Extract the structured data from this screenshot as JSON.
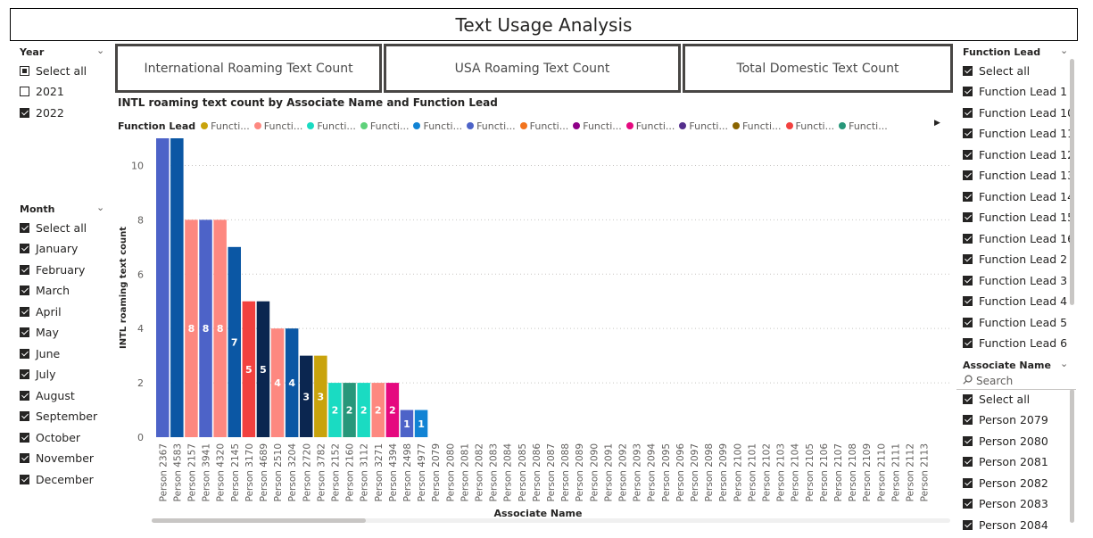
{
  "page_title": "Text Usage Analysis",
  "year_slicer": {
    "header": "Year",
    "items": [
      {
        "label": "Select all",
        "state": "partial"
      },
      {
        "label": "2021",
        "state": "unchecked"
      },
      {
        "label": "2022",
        "state": "checked"
      }
    ]
  },
  "month_slicer": {
    "header": "Month",
    "items": [
      "Select all",
      "January",
      "February",
      "March",
      "April",
      "May",
      "June",
      "July",
      "August",
      "September",
      "October",
      "November",
      "December"
    ]
  },
  "cards": [
    {
      "label": "International Roaming Text Count"
    },
    {
      "label": "USA Roaming Text Count"
    },
    {
      "label": "Total Domestic Text Count"
    }
  ],
  "function_lead_slicer": {
    "header": "Function Lead",
    "items": [
      "Select all",
      "Function Lead 1",
      "Function Lead 10",
      "Function Lead 11",
      "Function Lead 12",
      "Function Lead 13",
      "Function Lead 14",
      "Function Lead 15",
      "Function Lead 16",
      "Function Lead 2",
      "Function Lead 3",
      "Function Lead 4",
      "Function Lead 5",
      "Function Lead 6"
    ]
  },
  "associate_slicer": {
    "header": "Associate Name",
    "search_placeholder": "Search",
    "items": [
      "Select all",
      "Person 2079",
      "Person 2080",
      "Person 2081",
      "Person 2082",
      "Person 2083",
      "Person 2084"
    ]
  },
  "chart": {
    "title": "INTL roaming text count by Associate Name and Function Lead",
    "legend_title": "Function Lead",
    "legend_items": [
      {
        "label": "Functi...",
        "color": "#C9A30C"
      },
      {
        "label": "Functi...",
        "color": "#FD8880"
      },
      {
        "label": "Functi...",
        "color": "#1ADBC2"
      },
      {
        "label": "Functi...",
        "color": "#5ED17A"
      },
      {
        "label": "Functi...",
        "color": "#1183D4"
      },
      {
        "label": "Functi...",
        "color": "#4D63C8"
      },
      {
        "label": "Functi...",
        "color": "#F2731D"
      },
      {
        "label": "Functi...",
        "color": "#8E0088"
      },
      {
        "label": "Functi...",
        "color": "#E5097F"
      },
      {
        "label": "Functi...",
        "color": "#542E8C"
      },
      {
        "label": "Functi...",
        "color": "#8A6400"
      },
      {
        "label": "Functi...",
        "color": "#F2413F"
      },
      {
        "label": "Functi...",
        "color": "#27977A"
      }
    ]
  },
  "chart_data": {
    "type": "bar",
    "title": "INTL roaming text count by Associate Name and Function Lead",
    "xlabel": "Associate Name",
    "ylabel": "INTL roaming text count",
    "ylim": [
      0,
      11
    ],
    "yticks": [
      0,
      2,
      4,
      6,
      8,
      10
    ],
    "grid": true,
    "legend_position": "top-left",
    "categories": [
      "Person 2367",
      "Person 4583",
      "Person 2157",
      "Person 3941",
      "Person 4320",
      "Person 2145",
      "Person 3170",
      "Person 4689",
      "Person 2510",
      "Person 3204",
      "Person 2720",
      "Person 3782",
      "Person 2152",
      "Person 2160",
      "Person 3112",
      "Person 3271",
      "Person 4394",
      "Person 2498",
      "Person 4977",
      "Person 2079",
      "Person 2080",
      "Person 2081",
      "Person 2082",
      "Person 2083",
      "Person 2084",
      "Person 2085",
      "Person 2086",
      "Person 2087",
      "Person 2088",
      "Person 2089",
      "Person 2090",
      "Person 2091",
      "Person 2092",
      "Person 2093",
      "Person 2094",
      "Person 2095",
      "Person 2096",
      "Person 2097",
      "Person 2098",
      "Person 2099",
      "Person 2100",
      "Person 2101",
      "Person 2102",
      "Person 2103",
      "Person 2104",
      "Person 2105",
      "Person 2106",
      "Person 2107",
      "Person 2108",
      "Person 2109",
      "Person 2110",
      "Person 2111",
      "Person 2112",
      "Person 2113"
    ],
    "values": [
      11,
      11,
      8,
      8,
      8,
      7,
      5,
      5,
      4,
      4,
      3,
      3,
      2,
      2,
      2,
      2,
      2,
      1,
      1,
      0,
      0,
      0,
      0,
      0,
      0,
      0,
      0,
      0,
      0,
      0,
      0,
      0,
      0,
      0,
      0,
      0,
      0,
      0,
      0,
      0,
      0,
      0,
      0,
      0,
      0,
      0,
      0,
      0,
      0,
      0,
      0,
      0,
      0,
      0
    ],
    "data_labels": [
      "",
      "",
      "8",
      "8",
      "8",
      "7",
      "5",
      "5",
      "4",
      "4",
      "3",
      "3",
      "2",
      "2",
      "2",
      "2",
      "2",
      "1",
      "1",
      "",
      "",
      "",
      "",
      "",
      "",
      "",
      "",
      "",
      "",
      "",
      "",
      "",
      "",
      "",
      "",
      "",
      "",
      "",
      "",
      "",
      "",
      "",
      "",
      "",
      "",
      "",
      "",
      "",
      "",
      "",
      "",
      "",
      "",
      ""
    ],
    "bar_colors": [
      "#4D63C8",
      "#0B57A4",
      "#FD8880",
      "#4D63C8",
      "#FD8880",
      "#0B57A4",
      "#F2413F",
      "#0B2650",
      "#FD8880",
      "#0B57A4",
      "#0B2650",
      "#C9A30C",
      "#1ADBC2",
      "#27977A",
      "#1ADBC2",
      "#FD8880",
      "#E5097F",
      "#4D63C8",
      "#1183D4"
    ]
  }
}
